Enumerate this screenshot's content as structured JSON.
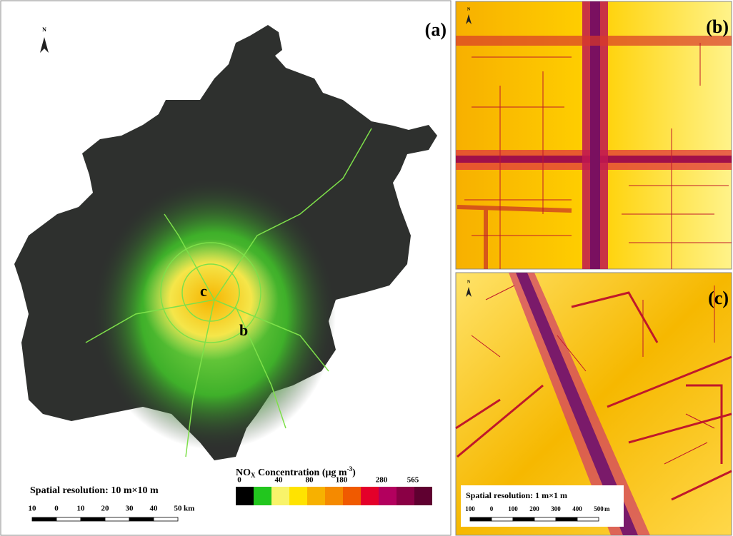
{
  "panel_a": {
    "label": "(a)",
    "north": "N",
    "places": [
      "c",
      "b"
    ],
    "resolution": "Spatial resolution:  10 m×10 m",
    "scale_ticks": [
      10,
      0,
      10,
      20,
      30,
      40,
      50
    ],
    "scale_unit": "km"
  },
  "legend": {
    "title": [
      "NO",
      "X",
      " Concentration (μg m",
      "-3",
      ")"
    ],
    "ticks": [
      0,
      40,
      80,
      180,
      280,
      565
    ],
    "colors": [
      "#000000",
      "#22c61e",
      "#f8f36a",
      "#ffe300",
      "#f7b100",
      "#f58a00",
      "#f05a00",
      "#e4002a",
      "#b3005e",
      "#8a0045",
      "#5f0030"
    ]
  },
  "panel_b": {
    "label": "(b)",
    "north": "N"
  },
  "panel_c": {
    "label": "(c)",
    "north": "N",
    "resolution": "Spatial resolution: 1 m×1 m",
    "scale_ticks": [
      100,
      0,
      100,
      200,
      300,
      400,
      500
    ],
    "scale_unit": "m"
  }
}
